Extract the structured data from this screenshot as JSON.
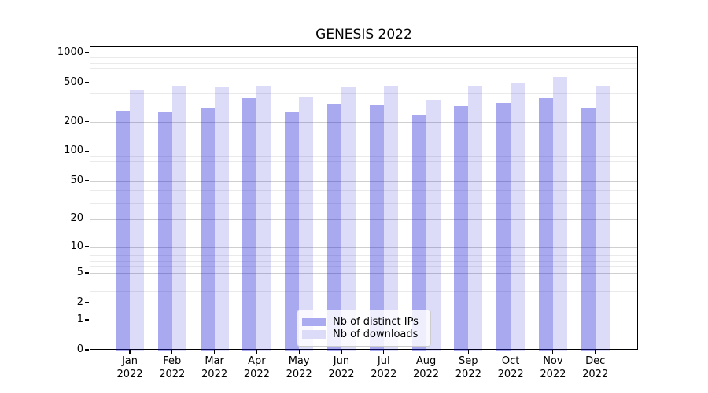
{
  "chart_data": {
    "type": "bar",
    "title": "GENESIS 2022",
    "categories": [
      "Jan",
      "Feb",
      "Mar",
      "Apr",
      "May",
      "Jun",
      "Jul",
      "Aug",
      "Sep",
      "Oct",
      "Nov",
      "Dec"
    ],
    "x_year_suffix": "2022",
    "series": [
      {
        "name": "Nb of distinct IPs",
        "values": [
          263,
          255,
          275,
          350,
          255,
          312,
          303,
          240,
          292,
          316,
          350,
          283
        ],
        "legend_color": "#aaaaf0",
        "fill": "rgba(21,21,214,0.37)"
      },
      {
        "name": "Nb of downloads",
        "values": [
          434,
          464,
          456,
          470,
          362,
          456,
          464,
          341,
          470,
          502,
          575,
          464
        ],
        "legend_color": "#dcdcf8",
        "fill": "rgba(21,21,214,0.15)"
      }
    ],
    "yscale": "log1p",
    "yticks": [
      0,
      1,
      2,
      5,
      10,
      20,
      50,
      100,
      200,
      500,
      1000
    ],
    "yticks_minor": [
      3,
      4,
      6,
      7,
      8,
      9,
      30,
      40,
      60,
      70,
      80,
      90,
      300,
      400,
      600,
      700,
      800,
      900
    ],
    "ylim": [
      0,
      1157
    ],
    "grid": true,
    "legend_position": "lower center",
    "grid_major_color": "#cfcfcf",
    "grid_minor_color": "#eaeaea"
  }
}
